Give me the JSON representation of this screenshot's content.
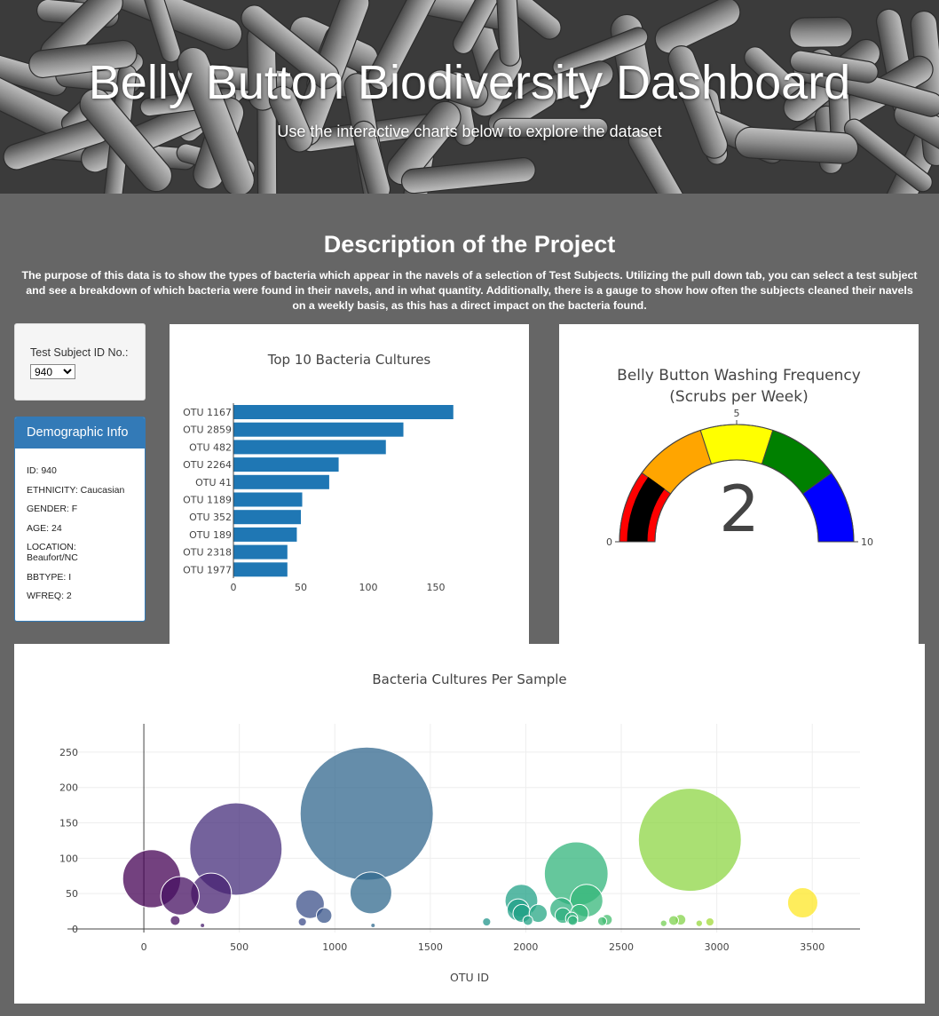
{
  "header": {
    "title": "Belly Button Biodiversity Dashboard",
    "subtitle": "Use the interactive charts below to explore the dataset"
  },
  "description": {
    "title": "Description of the Project",
    "text": "The purpose of this data is to show the types of bacteria which appear in the navels of a selection of Test Subjects. Utilizing the pull down tab, you can select a test subject and see a breakdown of which bacteria were found in their navels, and in what quantity. Additionally, there is a gauge to show how often the subjects cleaned their navels on a weekly basis, as this has a direct impact on the bacteria found."
  },
  "selector": {
    "label": "Test Subject ID No.:",
    "selected": "940"
  },
  "demographics": {
    "heading": "Demographic Info",
    "lines": [
      "ID: 940",
      "ETHNICITY: Caucasian",
      "GENDER: F",
      "AGE: 24",
      "LOCATION: Beaufort/NC",
      "BBTYPE: I",
      "WFREQ: 2"
    ]
  },
  "chart_data": [
    {
      "type": "bar",
      "orientation": "horizontal",
      "title": "Top 10 Bacteria Cultures",
      "categories": [
        "OTU 1167",
        "OTU 2859",
        "OTU 482",
        "OTU 2264",
        "OTU 41",
        "OTU 1189",
        "OTU 352",
        "OTU 189",
        "OTU 2318",
        "OTU 1977"
      ],
      "values": [
        163,
        126,
        113,
        78,
        71,
        51,
        50,
        47,
        40,
        40
      ],
      "xlim": [
        0,
        170
      ],
      "xticks": [
        0,
        50,
        100,
        150
      ],
      "color": "#1f77b4",
      "grid": false
    },
    {
      "type": "gauge",
      "title": [
        "Belly Button Washing Frequency",
        "(Scrubs per Week)"
      ],
      "value": 2,
      "range": [
        0,
        10
      ],
      "tick_labels": [
        "0",
        "5",
        "10"
      ],
      "steps": [
        {
          "range": [
            0,
            2
          ],
          "color": "#ff0000"
        },
        {
          "range": [
            2,
            4
          ],
          "color": "#ffa500"
        },
        {
          "range": [
            4,
            6
          ],
          "color": "#ffff00"
        },
        {
          "range": [
            6,
            8
          ],
          "color": "#008000"
        },
        {
          "range": [
            8,
            10
          ],
          "color": "#0000ff"
        }
      ],
      "bar_color": "#000000"
    },
    {
      "type": "scatter",
      "subtype": "bubble",
      "title": "Bacteria Cultures Per Sample",
      "xlabel": "OTU ID",
      "ylabel": "",
      "xlim": [
        -400,
        3750
      ],
      "ylim": [
        -5,
        290
      ],
      "xticks": [
        0,
        500,
        1000,
        1500,
        2000,
        2500,
        3000,
        3500
      ],
      "yticks": [
        0,
        50,
        100,
        150,
        200,
        250
      ],
      "grid": true,
      "colorscale": "Viridis",
      "points": [
        {
          "x": 41,
          "y": 71
        },
        {
          "x": 189,
          "y": 47
        },
        {
          "x": 352,
          "y": 50
        },
        {
          "x": 482,
          "y": 113
        },
        {
          "x": 164,
          "y": 12
        },
        {
          "x": 307,
          "y": 5
        },
        {
          "x": 870,
          "y": 35
        },
        {
          "x": 944,
          "y": 19
        },
        {
          "x": 830,
          "y": 10
        },
        {
          "x": 1167,
          "y": 163
        },
        {
          "x": 1189,
          "y": 51
        },
        {
          "x": 1200,
          "y": 5
        },
        {
          "x": 1795,
          "y": 10
        },
        {
          "x": 1977,
          "y": 40
        },
        {
          "x": 1960,
          "y": 27
        },
        {
          "x": 1980,
          "y": 22
        },
        {
          "x": 2011,
          "y": 12
        },
        {
          "x": 2065,
          "y": 22
        },
        {
          "x": 2186,
          "y": 28
        },
        {
          "x": 2194,
          "y": 19
        },
        {
          "x": 2240,
          "y": 15
        },
        {
          "x": 2264,
          "y": 78
        },
        {
          "x": 2281,
          "y": 22
        },
        {
          "x": 2318,
          "y": 40
        },
        {
          "x": 2246,
          "y": 12
        },
        {
          "x": 2400,
          "y": 11
        },
        {
          "x": 2425,
          "y": 13
        },
        {
          "x": 2722,
          "y": 8
        },
        {
          "x": 2774,
          "y": 12
        },
        {
          "x": 2810,
          "y": 13
        },
        {
          "x": 2859,
          "y": 126
        },
        {
          "x": 2908,
          "y": 8
        },
        {
          "x": 2964,
          "y": 10
        },
        {
          "x": 3450,
          "y": 37
        }
      ]
    }
  ]
}
